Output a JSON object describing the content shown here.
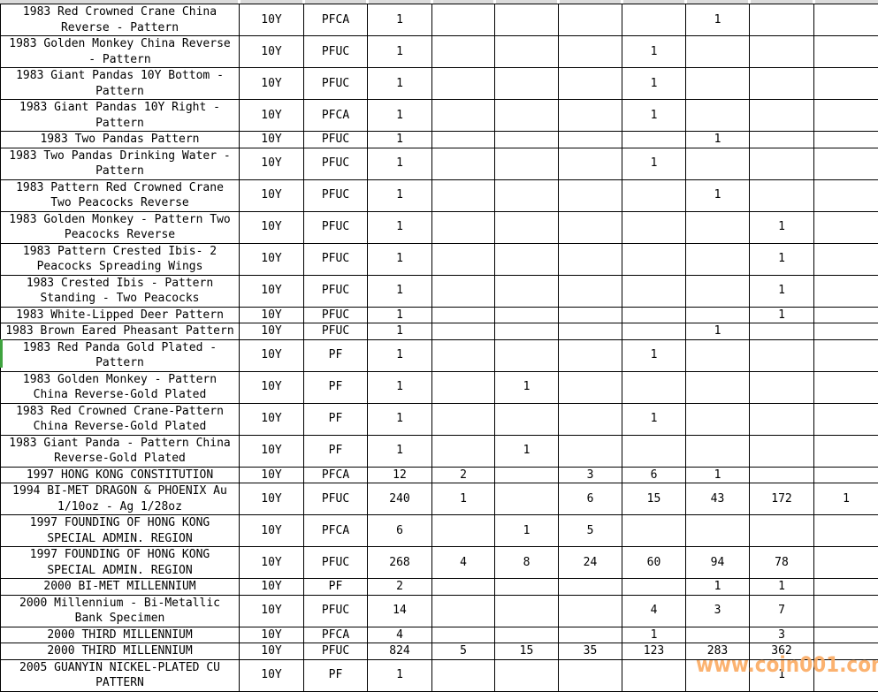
{
  "watermark": "www.coin001.com",
  "colors": {
    "grid": "#000000",
    "top_strip": "#DBDBDB",
    "selection_marker_green": "#3FA33F",
    "watermark_orange": "#FBAD66"
  },
  "table": {
    "rows": [
      {
        "description": "1983 Red Crowned Crane China Reverse - Pattern",
        "denomination": "10Y",
        "grade": "PFCA",
        "values": [
          "1",
          "",
          "",
          "",
          "",
          "1",
          "",
          ""
        ]
      },
      {
        "description": "1983 Golden Monkey China Reverse - Pattern",
        "denomination": "10Y",
        "grade": "PFUC",
        "values": [
          "1",
          "",
          "",
          "",
          "1",
          "",
          "",
          ""
        ]
      },
      {
        "description": "1983 Giant Pandas 10Y Bottom - Pattern",
        "denomination": "10Y",
        "grade": "PFUC",
        "values": [
          "1",
          "",
          "",
          "",
          "1",
          "",
          "",
          ""
        ]
      },
      {
        "description": "1983 Giant Pandas 10Y Right - Pattern",
        "denomination": "10Y",
        "grade": "PFCA",
        "values": [
          "1",
          "",
          "",
          "",
          "1",
          "",
          "",
          ""
        ]
      },
      {
        "description": "1983 Two Pandas Pattern",
        "denomination": "10Y",
        "grade": "PFUC",
        "values": [
          "1",
          "",
          "",
          "",
          "",
          "1",
          "",
          ""
        ]
      },
      {
        "description": "1983 Two Pandas Drinking Water - Pattern",
        "denomination": "10Y",
        "grade": "PFUC",
        "values": [
          "1",
          "",
          "",
          "",
          "1",
          "",
          "",
          ""
        ]
      },
      {
        "description": "1983 Pattern Red Crowned Crane Two Peacocks Reverse",
        "denomination": "10Y",
        "grade": "PFUC",
        "values": [
          "1",
          "",
          "",
          "",
          "",
          "1",
          "",
          ""
        ]
      },
      {
        "description": "1983 Golden Monkey - Pattern Two Peacocks Reverse",
        "denomination": "10Y",
        "grade": "PFUC",
        "values": [
          "1",
          "",
          "",
          "",
          "",
          "",
          "1",
          ""
        ]
      },
      {
        "description": "1983 Pattern Crested Ibis- 2 Peacocks Spreading Wings",
        "denomination": "10Y",
        "grade": "PFUC",
        "values": [
          "1",
          "",
          "",
          "",
          "",
          "",
          "1",
          ""
        ]
      },
      {
        "description": "1983 Crested Ibis - Pattern Standing - Two Peacocks",
        "denomination": "10Y",
        "grade": "PFUC",
        "values": [
          "1",
          "",
          "",
          "",
          "",
          "",
          "1",
          ""
        ]
      },
      {
        "description": "1983 White-Lipped Deer Pattern",
        "denomination": "10Y",
        "grade": "PFUC",
        "values": [
          "1",
          "",
          "",
          "",
          "",
          "",
          "1",
          ""
        ]
      },
      {
        "description": "1983 Brown Eared Pheasant Pattern",
        "denomination": "10Y",
        "grade": "PFUC",
        "values": [
          "1",
          "",
          "",
          "",
          "",
          "1",
          "",
          ""
        ]
      },
      {
        "description": "1983 Red Panda Gold Plated - Pattern",
        "denomination": "10Y",
        "grade": "PF",
        "values": [
          "1",
          "",
          "",
          "",
          "1",
          "",
          "",
          ""
        ]
      },
      {
        "description": "1983 Golden Monkey - Pattern China Reverse-Gold Plated",
        "denomination": "10Y",
        "grade": "PF",
        "values": [
          "1",
          "",
          "1",
          "",
          "",
          "",
          "",
          ""
        ]
      },
      {
        "description": "1983 Red Crowned Crane-Pattern China Reverse-Gold Plated",
        "denomination": "10Y",
        "grade": "PF",
        "values": [
          "1",
          "",
          "",
          "",
          "1",
          "",
          "",
          ""
        ]
      },
      {
        "description": "1983 Giant Panda - Pattern China Reverse-Gold Plated",
        "denomination": "10Y",
        "grade": "PF",
        "values": [
          "1",
          "",
          "1",
          "",
          "",
          "",
          "",
          ""
        ]
      },
      {
        "description": "1997 HONG KONG CONSTITUTION",
        "denomination": "10Y",
        "grade": "PFCA",
        "values": [
          "12",
          "2",
          "",
          "3",
          "6",
          "1",
          "",
          ""
        ]
      },
      {
        "description": "1994 BI-MET DRAGON & PHOENIX Au 1/10oz - Ag 1/28oz",
        "denomination": "10Y",
        "grade": "PFUC",
        "values": [
          "240",
          "1",
          "",
          "6",
          "15",
          "43",
          "172",
          "1"
        ]
      },
      {
        "description": "1997 FOUNDING OF HONG KONG SPECIAL ADMIN. REGION",
        "denomination": "10Y",
        "grade": "PFCA",
        "values": [
          "6",
          "",
          "1",
          "5",
          "",
          "",
          "",
          ""
        ]
      },
      {
        "description": "1997 FOUNDING OF HONG KONG SPECIAL ADMIN. REGION",
        "denomination": "10Y",
        "grade": "PFUC",
        "values": [
          "268",
          "4",
          "8",
          "24",
          "60",
          "94",
          "78",
          ""
        ]
      },
      {
        "description": "2000 BI-MET MILLENNIUM",
        "denomination": "10Y",
        "grade": "PF",
        "values": [
          "2",
          "",
          "",
          "",
          "",
          "1",
          "1",
          ""
        ]
      },
      {
        "description": "2000 Millennium - Bi-Metallic Bank Specimen",
        "denomination": "10Y",
        "grade": "PFUC",
        "values": [
          "14",
          "",
          "",
          "",
          "4",
          "3",
          "7",
          ""
        ]
      },
      {
        "description": "2000 THIRD MILLENNIUM",
        "denomination": "10Y",
        "grade": "PFCA",
        "values": [
          "4",
          "",
          "",
          "",
          "1",
          "",
          "3",
          ""
        ]
      },
      {
        "description": "2000 THIRD MILLENNIUM",
        "denomination": "10Y",
        "grade": "PFUC",
        "values": [
          "824",
          "5",
          "15",
          "35",
          "123",
          "283",
          "362",
          ""
        ]
      },
      {
        "description": "2005 GUANYIN NICKEL-PLATED CU PATTERN",
        "denomination": "10Y",
        "grade": "PF",
        "values": [
          "1",
          "",
          "",
          "",
          "",
          "",
          "1",
          ""
        ]
      }
    ]
  }
}
